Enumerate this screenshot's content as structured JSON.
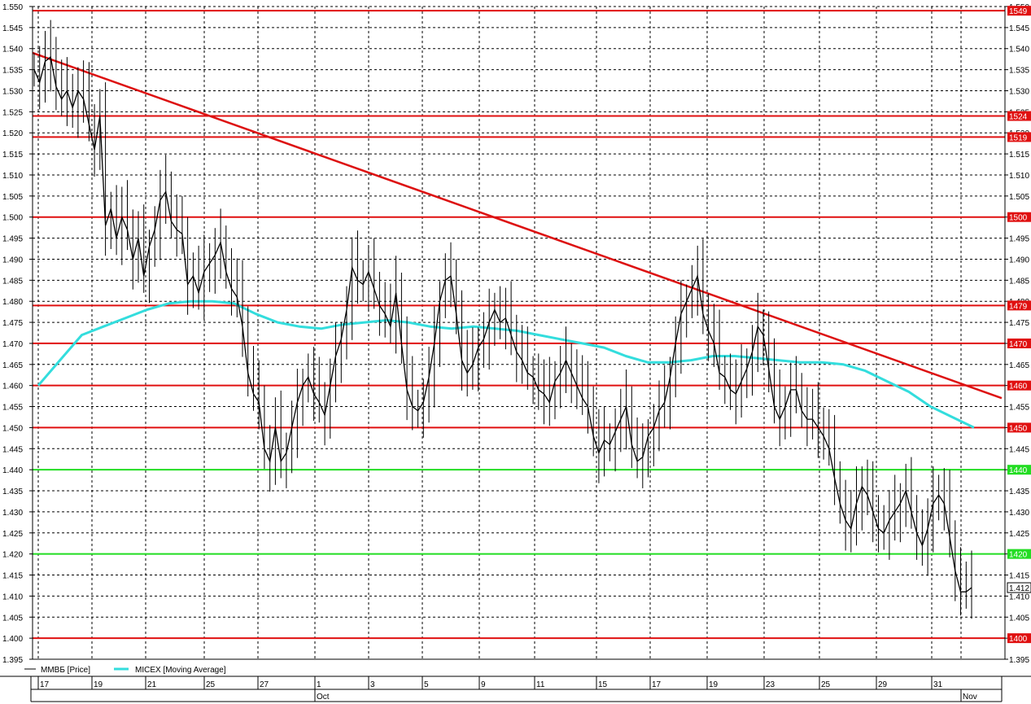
{
  "chart_data": {
    "type": "line",
    "y_range": [
      1.395,
      1.55
    ],
    "y_ticks": [
      "1.395",
      "1.400",
      "1.405",
      "1.410",
      "1.415",
      "1.420",
      "1.425",
      "1.430",
      "1.435",
      "1.440",
      "1.445",
      "1.450",
      "1.455",
      "1.460",
      "1.465",
      "1.470",
      "1.475",
      "1.480",
      "1.485",
      "1.490",
      "1.495",
      "1.500",
      "1.505",
      "1.510",
      "1.515",
      "1.520",
      "1.525",
      "1.530",
      "1.535",
      "1.540",
      "1.545",
      "1.550"
    ],
    "x_date_ticks": [
      "17",
      "19",
      "21",
      "25",
      "27",
      "1",
      "3",
      "5",
      "9",
      "11",
      "15",
      "17",
      "19",
      "23",
      "25",
      "29",
      "31"
    ],
    "month_labels": [
      "Oct",
      "Nov"
    ],
    "grid": true,
    "legend_position": "bottom-left",
    "legend": [
      {
        "name": "ММВБ [Price]",
        "color": "#000000"
      },
      {
        "name": "MICEX [Moving Average]",
        "color": "#33dddd"
      }
    ],
    "last_price": "1.412",
    "levels": [
      {
        "value": 1.549,
        "tag": "1549",
        "color": "#e01010"
      },
      {
        "value": 1.524,
        "tag": "1524",
        "color": "#e01010"
      },
      {
        "value": 1.519,
        "tag": "1519",
        "color": "#e01010"
      },
      {
        "value": 1.5,
        "tag": "1500",
        "color": "#e01010"
      },
      {
        "value": 1.479,
        "tag": "1479",
        "color": "#e01010"
      },
      {
        "value": 1.47,
        "tag": "1470",
        "color": "#e01010"
      },
      {
        "value": 1.46,
        "tag": "1460",
        "color": "#e01010"
      },
      {
        "value": 1.45,
        "tag": "1450",
        "color": "#e01010"
      },
      {
        "value": 1.44,
        "tag": "1440",
        "color": "#22dd22"
      },
      {
        "value": 1.42,
        "tag": "1420",
        "color": "#22dd22"
      },
      {
        "value": 1.4,
        "tag": "1400",
        "color": "#e01010"
      }
    ],
    "trendline": {
      "start_value": 1.539,
      "end_value": 1.457,
      "color": "#dd1111"
    },
    "price_series": {
      "name": "ММВБ [Price]",
      "values": [
        1.535,
        1.532,
        1.537,
        1.538,
        1.531,
        1.528,
        1.53,
        1.526,
        1.53,
        1.528,
        1.522,
        1.516,
        1.524,
        1.498,
        1.502,
        1.495,
        1.5,
        1.497,
        1.49,
        1.495,
        1.486,
        1.493,
        1.497,
        1.504,
        1.506,
        1.499,
        1.497,
        1.496,
        1.484,
        1.486,
        1.482,
        1.487,
        1.489,
        1.491,
        1.494,
        1.487,
        1.483,
        1.481,
        1.474,
        1.463,
        1.458,
        1.456,
        1.445,
        1.442,
        1.45,
        1.442,
        1.444,
        1.45,
        1.456,
        1.46,
        1.462,
        1.458,
        1.456,
        1.453,
        1.46,
        1.467,
        1.471,
        1.478,
        1.488,
        1.485,
        1.484,
        1.487,
        1.483,
        1.479,
        1.477,
        1.474,
        1.482,
        1.47,
        1.459,
        1.455,
        1.454,
        1.456,
        1.462,
        1.47,
        1.48,
        1.485,
        1.486,
        1.477,
        1.466,
        1.463,
        1.465,
        1.469,
        1.471,
        1.475,
        1.478,
        1.475,
        1.476,
        1.472,
        1.468,
        1.466,
        1.463,
        1.462,
        1.459,
        1.458,
        1.456,
        1.461,
        1.463,
        1.466,
        1.463,
        1.46,
        1.457,
        1.455,
        1.448,
        1.444,
        1.447,
        1.446,
        1.449,
        1.452,
        1.455,
        1.446,
        1.442,
        1.443,
        1.448,
        1.45,
        1.454,
        1.456,
        1.462,
        1.47,
        1.477,
        1.48,
        1.483,
        1.486,
        1.477,
        1.473,
        1.47,
        1.463,
        1.462,
        1.459,
        1.458,
        1.461,
        1.464,
        1.468,
        1.474,
        1.472,
        1.464,
        1.455,
        1.452,
        1.455,
        1.459,
        1.459,
        1.454,
        1.452,
        1.452,
        1.45,
        1.448,
        1.445,
        1.438,
        1.432,
        1.428,
        1.426,
        1.432,
        1.436,
        1.434,
        1.43,
        1.426,
        1.425,
        1.428,
        1.43,
        1.432,
        1.435,
        1.43,
        1.425,
        1.422,
        1.426,
        1.432,
        1.434,
        1.432,
        1.424,
        1.416,
        1.411,
        1.411,
        1.412
      ]
    },
    "moving_average": {
      "name": "MICEX [Moving Average]",
      "values": [
        1.46,
        1.466,
        1.472,
        1.474,
        1.476,
        1.478,
        1.4795,
        1.48,
        1.48,
        1.4795,
        1.477,
        1.475,
        1.474,
        1.4735,
        1.4745,
        1.475,
        1.4755,
        1.475,
        1.474,
        1.4735,
        1.474,
        1.4735,
        1.473,
        1.472,
        1.471,
        1.47,
        1.469,
        1.467,
        1.4655,
        1.4655,
        1.466,
        1.467,
        1.467,
        1.4665,
        1.466,
        1.4655,
        1.4655,
        1.465,
        1.4635,
        1.461,
        1.4585,
        1.455,
        1.4525,
        1.45
      ]
    }
  }
}
